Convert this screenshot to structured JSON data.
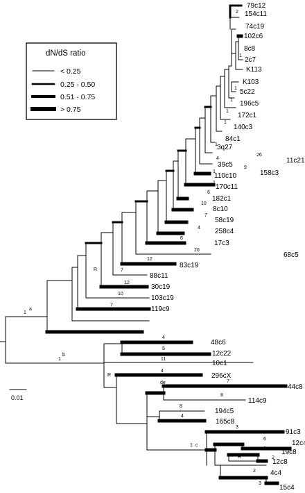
{
  "legend": {
    "title": "dN/dS ratio",
    "items": [
      {
        "label": "< 0.25",
        "width_class": 1
      },
      {
        "label": "0.25 - 0.50",
        "width_class": 2
      },
      {
        "label": "0.51 - 0.75",
        "width_class": 3
      },
      {
        "label": "> 0.75",
        "width_class": 4
      }
    ]
  },
  "scale_bar": {
    "label": "0.01"
  },
  "node_labels": {
    "a": "a",
    "b": "b",
    "c": "c",
    "de": "de",
    "r1": "R",
    "r2": "R",
    "r3": "R",
    "one_a": "1",
    "one_b": "1",
    "one_c": "1"
  },
  "taxa": [
    {
      "name": "79c12",
      "count": ""
    },
    {
      "name": "154c11",
      "count": "2"
    },
    {
      "name": "74c19",
      "count": ""
    },
    {
      "name": "102c6",
      "count": ""
    },
    {
      "name": "8c8",
      "count": ""
    },
    {
      "name": "2c7",
      "count": "1"
    },
    {
      "name": "K113",
      "count": ""
    },
    {
      "name": "K103",
      "count": ""
    },
    {
      "name": "5c22",
      "count": "1"
    },
    {
      "name": "196c5",
      "count": "1"
    },
    {
      "name": "172c1",
      "count": "1"
    },
    {
      "name": "140c3",
      "count": "1"
    },
    {
      "name": "84c1",
      "count": ""
    },
    {
      "name": "3q27",
      "count": "1"
    },
    {
      "name": "11c21",
      "count": "26"
    },
    {
      "name": "158c3",
      "count": "9"
    },
    {
      "name": "39c5",
      "count": "4"
    },
    {
      "name": "110c10",
      "count": "1"
    },
    {
      "name": "170c11",
      "count": "1"
    },
    {
      "name": "182c1",
      "count": "6"
    },
    {
      "name": "8c10",
      "count": "10"
    },
    {
      "name": "58c19",
      "count": "7"
    },
    {
      "name": "258c4",
      "count": "4"
    },
    {
      "name": "17c3",
      "count": "6"
    },
    {
      "name": "68c5",
      "count": "20"
    },
    {
      "name": "83c19",
      "count": "12"
    },
    {
      "name": "88c11",
      "count": "7"
    },
    {
      "name": "30c19",
      "count": "12"
    },
    {
      "name": "103c19",
      "count": "10"
    },
    {
      "name": "119c9",
      "count": "7"
    },
    {
      "name": "48c6",
      "count": "4"
    },
    {
      "name": "12c22",
      "count": "5"
    },
    {
      "name": "10c1",
      "count": "11"
    },
    {
      "name": "296cX",
      "count": "4"
    },
    {
      "name": "44c8",
      "count": "7"
    },
    {
      "name": "114c9",
      "count": "8"
    },
    {
      "name": "194c5",
      "count": "8"
    },
    {
      "name": "165c8",
      "count": "4"
    },
    {
      "name": "91c3",
      "count": "3"
    },
    {
      "name": "12c4",
      "count": "6"
    },
    {
      "name": "19c8",
      "count": "2"
    },
    {
      "name": "12c8",
      "count": "2"
    },
    {
      "name": "4c4",
      "count": "2"
    },
    {
      "name": "15c4",
      "count": "3"
    }
  ]
}
